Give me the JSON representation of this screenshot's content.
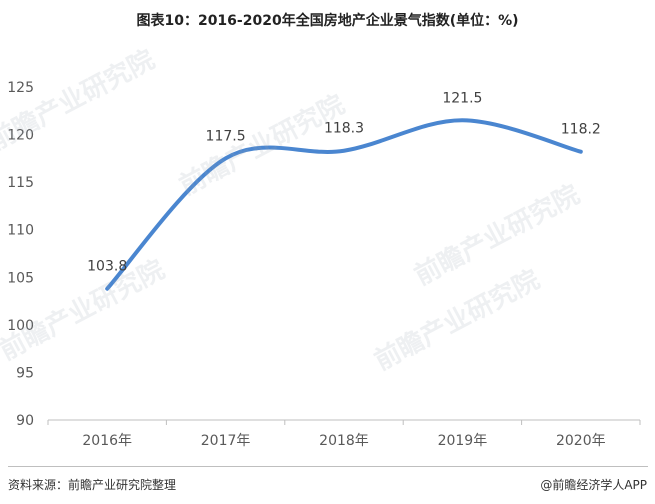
{
  "chart_data": {
    "type": "line",
    "title": "图表10：2016-2020年全国房地产企业景气指数(单位：%)",
    "categories": [
      "2016年",
      "2017年",
      "2018年",
      "2019年",
      "2020年"
    ],
    "series": [
      {
        "values": [
          103.8,
          117.5,
          118.3,
          121.5,
          118.2
        ]
      }
    ],
    "data_labels": [
      "103.8",
      "117.5",
      "118.3",
      "121.5",
      "118.2"
    ],
    "y_ticks": [
      "90",
      "95",
      "100",
      "105",
      "110",
      "115",
      "120",
      "125"
    ],
    "ylim": [
      90,
      125
    ],
    "grid": false,
    "smooth": true,
    "line_color": "#4a86d0"
  },
  "footer": {
    "source": "资料来源：前瞻产业研究院整理",
    "credit": "@前瞻经济学人APP"
  },
  "watermark": {
    "text": "前瞻产业研究院"
  }
}
